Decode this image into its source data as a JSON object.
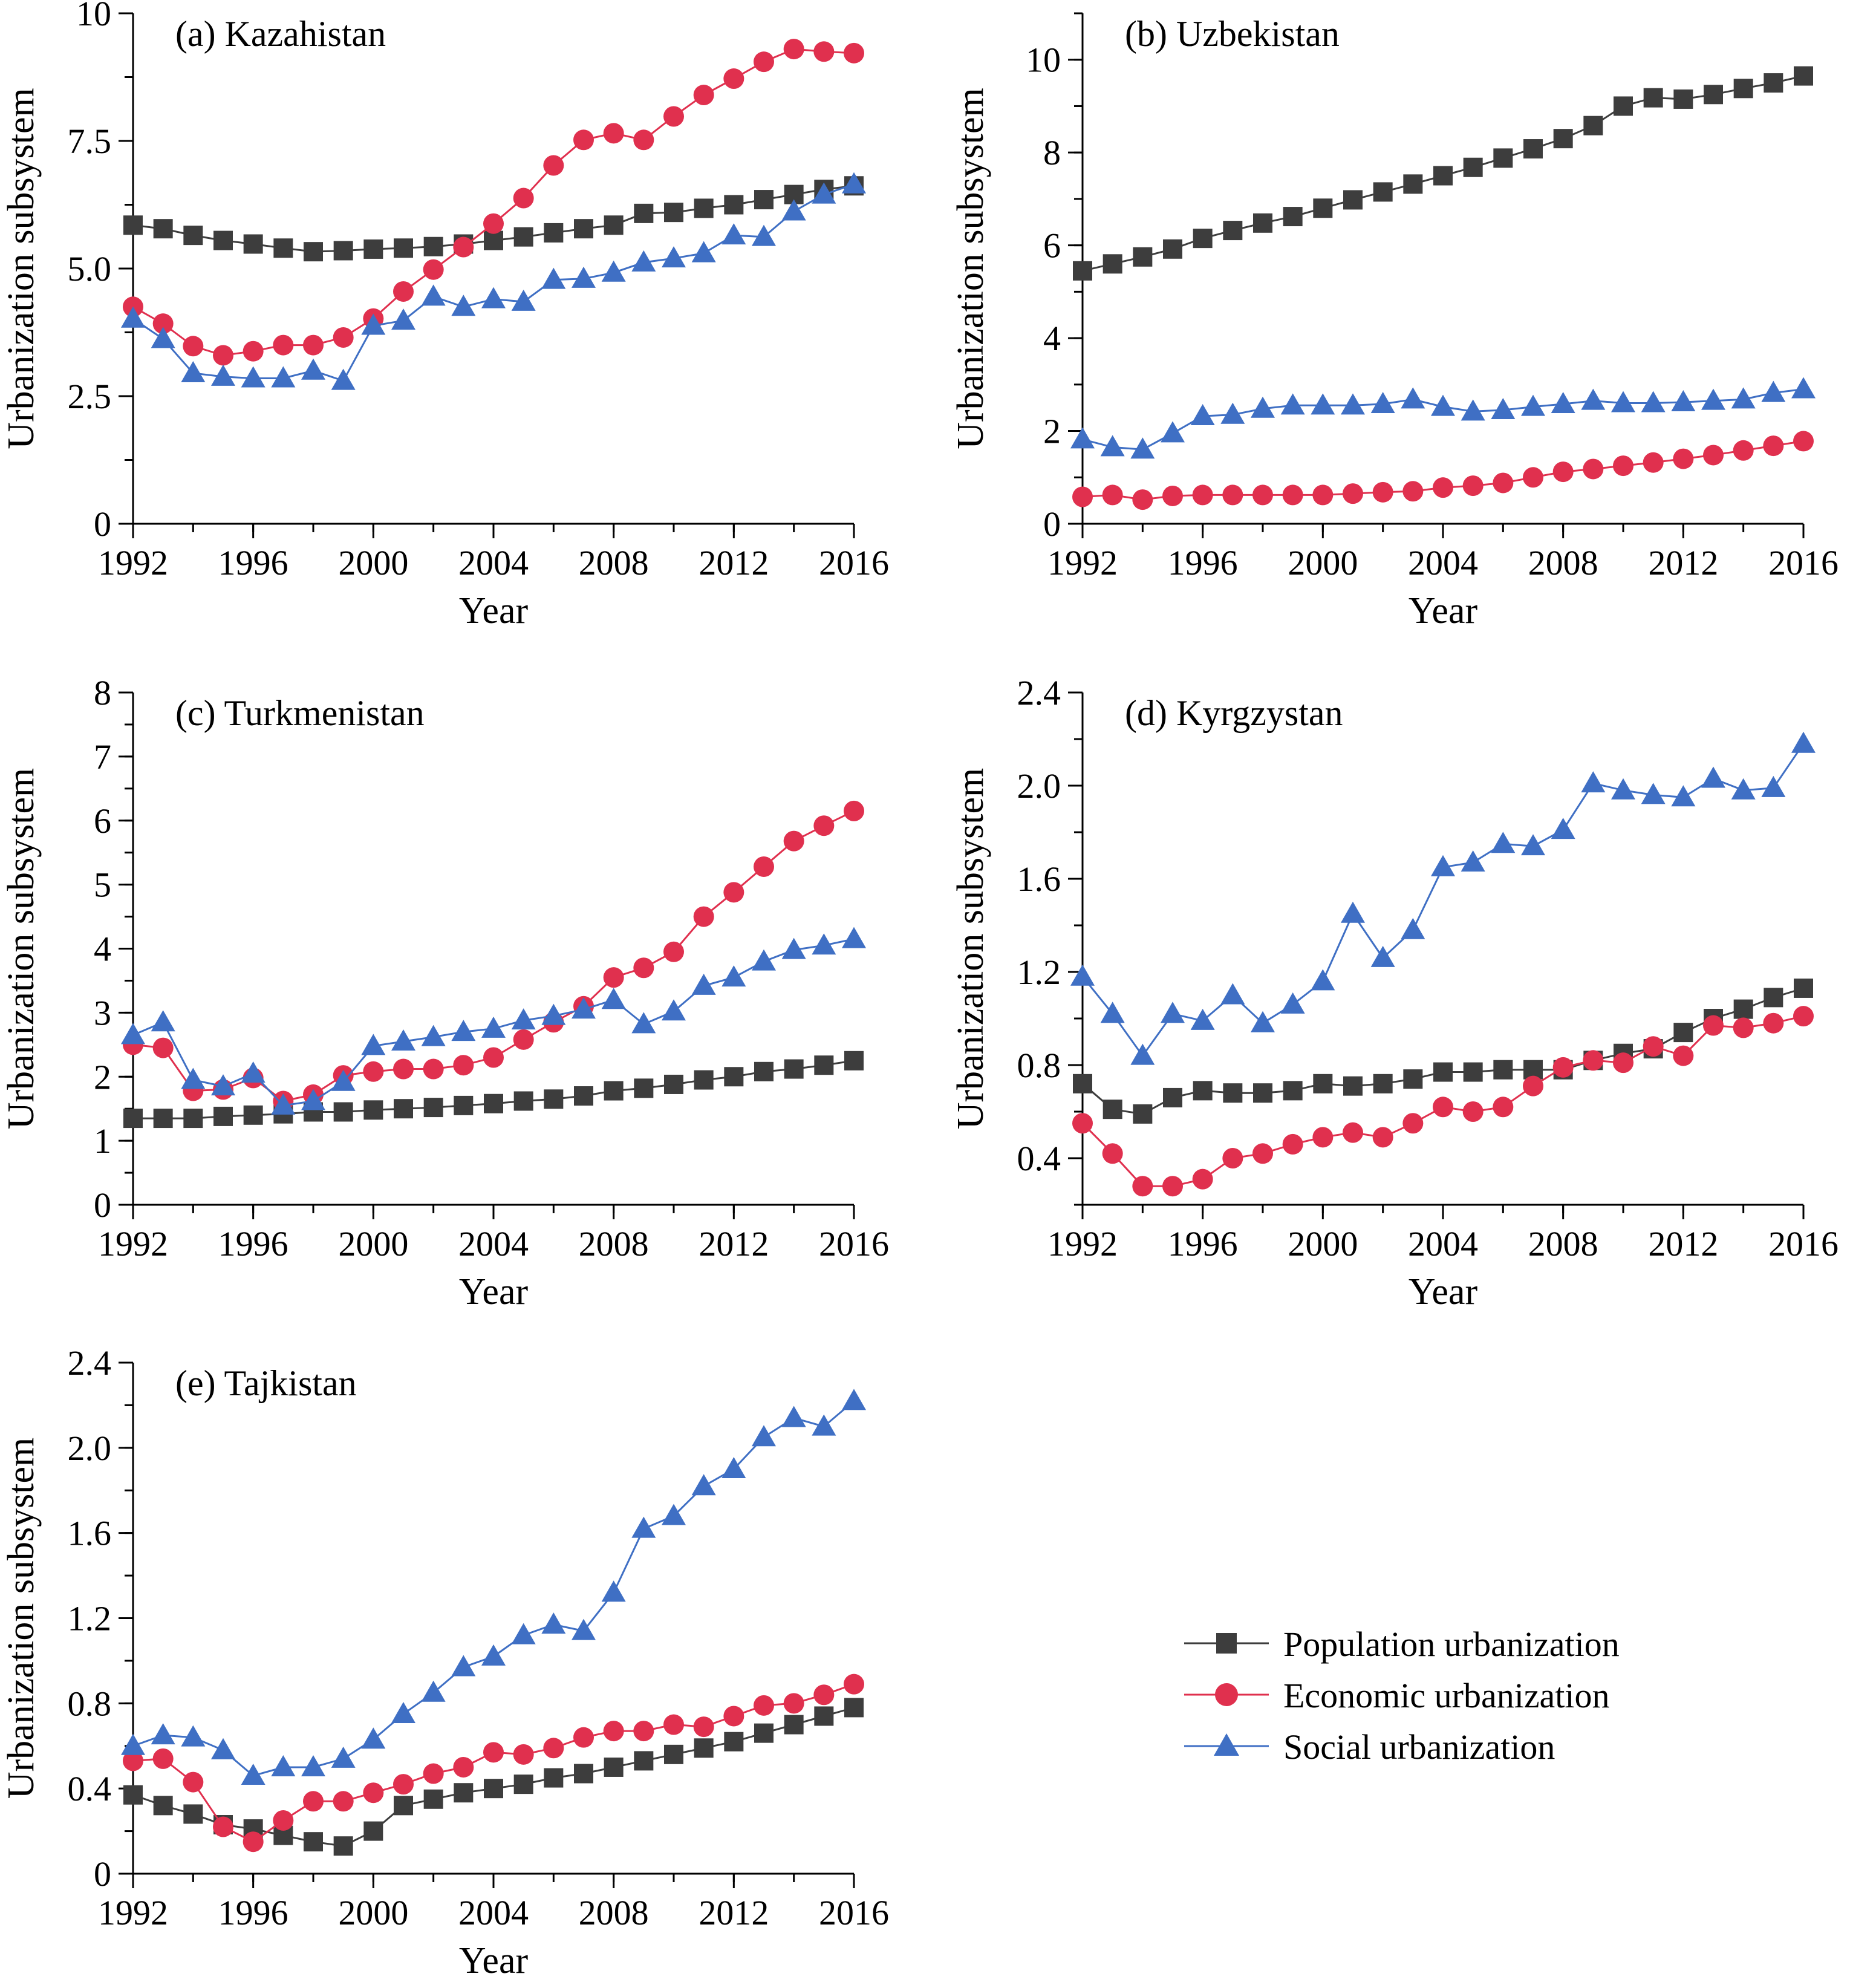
{
  "colors": {
    "population": "#3d3d3d",
    "economic": "#e0304e",
    "social": "#3f6fc4",
    "axis": "#000000"
  },
  "legend": {
    "items": [
      {
        "key": "population",
        "label": "Population urbanization",
        "marker": "square"
      },
      {
        "key": "economic",
        "label": "Economic urbanization",
        "marker": "circle"
      },
      {
        "key": "social",
        "label": "Social urbanization",
        "marker": "triangle"
      }
    ]
  },
  "chart_data": [
    {
      "type": "line",
      "title": "(a) Kazahistan",
      "xlabel": "Year",
      "ylabel": "Urbanization subsystem",
      "xlim": [
        1992,
        2016
      ],
      "ylim": [
        0,
        10
      ],
      "xticks": [
        1992,
        1996,
        2000,
        2004,
        2008,
        2012,
        2016
      ],
      "xtick_labels": [
        "1992",
        "1996",
        "2000",
        "2004",
        "2008",
        "2012",
        "2016"
      ],
      "yticks": [
        0,
        2.5,
        5.0,
        7.5,
        10
      ],
      "ytick_labels": [
        "0",
        "2.5",
        "5.0",
        "7.5",
        "10"
      ],
      "yminor": 1.25,
      "x": [
        1992,
        1993,
        1994,
        1995,
        1996,
        1997,
        1998,
        1999,
        2000,
        2001,
        2002,
        2003,
        2004,
        2005,
        2006,
        2007,
        2008,
        2009,
        2010,
        2011,
        2012,
        2013,
        2014,
        2015,
        2016
      ],
      "series": [
        {
          "name": "Population urbanization",
          "key": "population",
          "values": [
            5.85,
            5.78,
            5.65,
            5.55,
            5.48,
            5.4,
            5.33,
            5.35,
            5.38,
            5.4,
            5.43,
            5.48,
            5.55,
            5.62,
            5.7,
            5.78,
            5.85,
            6.08,
            6.1,
            6.18,
            6.25,
            6.35,
            6.45,
            6.55,
            6.62
          ]
        },
        {
          "name": "Economic urbanization",
          "key": "economic",
          "values": [
            4.25,
            3.92,
            3.48,
            3.3,
            3.38,
            3.5,
            3.5,
            3.65,
            4.02,
            4.55,
            4.98,
            5.42,
            5.88,
            6.38,
            7.02,
            7.52,
            7.65,
            7.52,
            7.98,
            8.4,
            8.72,
            9.05,
            9.3,
            9.25,
            9.22
          ]
        },
        {
          "name": "Social urbanization",
          "key": "social",
          "values": [
            4.02,
            3.62,
            2.95,
            2.88,
            2.85,
            2.85,
            3.0,
            2.8,
            3.88,
            3.98,
            4.45,
            4.25,
            4.4,
            4.35,
            4.78,
            4.8,
            4.92,
            5.12,
            5.2,
            5.3,
            5.65,
            5.62,
            6.12,
            6.45,
            6.65
          ]
        }
      ]
    },
    {
      "type": "line",
      "title": "(b) Uzbekistan",
      "xlabel": "Year",
      "ylabel": "Urbanization subsystem",
      "xlim": [
        1992,
        2016
      ],
      "ylim": [
        0,
        11
      ],
      "xticks": [
        1992,
        1996,
        2000,
        2004,
        2008,
        2012,
        2016
      ],
      "xtick_labels": [
        "1992",
        "1996",
        "2000",
        "2004",
        "2008",
        "2012",
        "2016"
      ],
      "yticks": [
        0,
        2,
        4,
        6,
        8,
        10
      ],
      "ytick_labels": [
        "0",
        "2",
        "4",
        "6",
        "8",
        "10"
      ],
      "yminor": 1,
      "x": [
        1992,
        1993,
        1994,
        1995,
        1996,
        1997,
        1998,
        1999,
        2000,
        2001,
        2002,
        2003,
        2004,
        2005,
        2006,
        2007,
        2008,
        2009,
        2010,
        2011,
        2012,
        2013,
        2014,
        2015,
        2016
      ],
      "series": [
        {
          "name": "Population urbanization",
          "key": "population",
          "values": [
            5.45,
            5.6,
            5.75,
            5.92,
            6.15,
            6.32,
            6.48,
            6.62,
            6.8,
            6.98,
            7.15,
            7.32,
            7.5,
            7.68,
            7.88,
            8.08,
            8.3,
            8.58,
            9.0,
            9.18,
            9.15,
            9.25,
            9.38,
            9.5,
            9.65
          ]
        },
        {
          "name": "Economic urbanization",
          "key": "economic",
          "values": [
            0.58,
            0.62,
            0.52,
            0.6,
            0.62,
            0.62,
            0.62,
            0.62,
            0.62,
            0.65,
            0.68,
            0.7,
            0.78,
            0.82,
            0.88,
            1.0,
            1.12,
            1.18,
            1.25,
            1.32,
            1.4,
            1.48,
            1.58,
            1.68,
            1.78
          ]
        },
        {
          "name": "Social urbanization",
          "key": "social",
          "values": [
            1.82,
            1.65,
            1.6,
            1.95,
            2.32,
            2.35,
            2.48,
            2.55,
            2.55,
            2.55,
            2.58,
            2.68,
            2.52,
            2.42,
            2.45,
            2.52,
            2.58,
            2.65,
            2.6,
            2.6,
            2.62,
            2.65,
            2.68,
            2.82,
            2.9
          ]
        }
      ]
    },
    {
      "type": "line",
      "title": "(c) Turkmenistan",
      "xlabel": "Year",
      "ylabel": "Urbanization subsystem",
      "xlim": [
        1992,
        2016
      ],
      "ylim": [
        0,
        8
      ],
      "xticks": [
        1992,
        1996,
        2000,
        2004,
        2008,
        2012,
        2016
      ],
      "xtick_labels": [
        "1992",
        "1996",
        "2000",
        "2004",
        "2008",
        "2012",
        "2016"
      ],
      "yticks": [
        0,
        1,
        2,
        3,
        4,
        5,
        6,
        7,
        8
      ],
      "ytick_labels": [
        "0",
        "1",
        "2",
        "3",
        "4",
        "5",
        "6",
        "7",
        "8"
      ],
      "yminor": 0.5,
      "x": [
        1992,
        1993,
        1994,
        1995,
        1996,
        1997,
        1998,
        1999,
        2000,
        2001,
        2002,
        2003,
        2004,
        2005,
        2006,
        2007,
        2008,
        2009,
        2010,
        2011,
        2012,
        2013,
        2014,
        2015,
        2016
      ],
      "series": [
        {
          "name": "Population urbanization",
          "key": "population",
          "values": [
            1.35,
            1.35,
            1.35,
            1.38,
            1.4,
            1.42,
            1.45,
            1.45,
            1.48,
            1.5,
            1.52,
            1.55,
            1.58,
            1.62,
            1.65,
            1.7,
            1.78,
            1.82,
            1.88,
            1.95,
            2.0,
            2.08,
            2.12,
            2.18,
            2.25
          ]
        },
        {
          "name": "Economic urbanization",
          "key": "economic",
          "values": [
            2.5,
            2.45,
            1.78,
            1.8,
            1.98,
            1.62,
            1.72,
            2.02,
            2.08,
            2.12,
            2.12,
            2.18,
            2.3,
            2.58,
            2.85,
            3.1,
            3.55,
            3.7,
            3.95,
            4.5,
            4.88,
            5.28,
            5.68,
            5.92,
            6.15
          ]
        },
        {
          "name": "Social urbanization",
          "key": "social",
          "values": [
            2.65,
            2.85,
            1.95,
            1.85,
            2.05,
            1.55,
            1.62,
            1.92,
            2.48,
            2.55,
            2.62,
            2.7,
            2.75,
            2.88,
            2.95,
            3.05,
            3.2,
            2.82,
            3.02,
            3.42,
            3.55,
            3.8,
            3.98,
            4.05,
            4.15
          ]
        }
      ]
    },
    {
      "type": "line",
      "title": "(d) Kyrgzystan",
      "xlabel": "Year",
      "ylabel": "Urbanization subsystem",
      "xlim": [
        1992,
        2016
      ],
      "ylim": [
        0.2,
        2.4
      ],
      "xticks": [
        1992,
        1996,
        2000,
        2004,
        2008,
        2012,
        2016
      ],
      "xtick_labels": [
        "1992",
        "1996",
        "2000",
        "2004",
        "2008",
        "2012",
        "2016"
      ],
      "yticks": [
        0.4,
        0.8,
        1.2,
        1.6,
        2.0,
        2.4
      ],
      "ytick_labels": [
        "0.4",
        "0.8",
        "1.2",
        "1.6",
        "2.0",
        "2.4"
      ],
      "yminor": 0.2,
      "x": [
        1992,
        1993,
        1994,
        1995,
        1996,
        1997,
        1998,
        1999,
        2000,
        2001,
        2002,
        2003,
        2004,
        2005,
        2006,
        2007,
        2008,
        2009,
        2010,
        2011,
        2012,
        2013,
        2014,
        2015,
        2016
      ],
      "series": [
        {
          "name": "Population urbanization",
          "key": "population",
          "values": [
            0.72,
            0.61,
            0.59,
            0.66,
            0.69,
            0.68,
            0.68,
            0.69,
            0.72,
            0.71,
            0.72,
            0.74,
            0.77,
            0.77,
            0.78,
            0.78,
            0.78,
            0.82,
            0.85,
            0.87,
            0.94,
            1.0,
            1.04,
            1.09,
            1.13
          ]
        },
        {
          "name": "Economic urbanization",
          "key": "economic",
          "values": [
            0.55,
            0.42,
            0.28,
            0.28,
            0.31,
            0.4,
            0.42,
            0.46,
            0.49,
            0.51,
            0.49,
            0.55,
            0.62,
            0.6,
            0.62,
            0.71,
            0.79,
            0.82,
            0.81,
            0.88,
            0.84,
            0.97,
            0.96,
            0.98,
            1.01
          ]
        },
        {
          "name": "Social urbanization",
          "key": "social",
          "values": [
            1.18,
            1.02,
            0.84,
            1.02,
            0.99,
            1.1,
            0.98,
            1.06,
            1.16,
            1.45,
            1.26,
            1.38,
            1.65,
            1.67,
            1.75,
            1.74,
            1.81,
            2.01,
            1.98,
            1.96,
            1.95,
            2.03,
            1.98,
            1.99,
            2.18
          ]
        }
      ]
    },
    {
      "type": "line",
      "title": "(e) Tajkistan",
      "xlabel": "Year",
      "ylabel": "Urbanization subsystem",
      "xlim": [
        1992,
        2016
      ],
      "ylim": [
        0,
        2.4
      ],
      "xticks": [
        1992,
        1996,
        2000,
        2004,
        2008,
        2012,
        2016
      ],
      "xtick_labels": [
        "1992",
        "1996",
        "2000",
        "2004",
        "2008",
        "2012",
        "2016"
      ],
      "yticks": [
        0,
        0.4,
        0.8,
        1.2,
        1.6,
        2.0,
        2.4
      ],
      "ytick_labels": [
        "0",
        "0.4",
        "0.8",
        "1.2",
        "1.6",
        "2.0",
        "2.4"
      ],
      "yminor": 0.2,
      "x": [
        1992,
        1993,
        1994,
        1995,
        1996,
        1997,
        1998,
        1999,
        2000,
        2001,
        2002,
        2003,
        2004,
        2005,
        2006,
        2007,
        2008,
        2009,
        2010,
        2011,
        2012,
        2013,
        2014,
        2015,
        2016
      ],
      "series": [
        {
          "name": "Population urbanization",
          "key": "population",
          "values": [
            0.37,
            0.32,
            0.28,
            0.23,
            0.21,
            0.18,
            0.15,
            0.13,
            0.2,
            0.32,
            0.35,
            0.38,
            0.4,
            0.42,
            0.45,
            0.47,
            0.5,
            0.53,
            0.56,
            0.59,
            0.62,
            0.66,
            0.7,
            0.74,
            0.78
          ]
        },
        {
          "name": "Economic urbanization",
          "key": "economic",
          "values": [
            0.53,
            0.54,
            0.43,
            0.22,
            0.15,
            0.25,
            0.34,
            0.34,
            0.38,
            0.42,
            0.47,
            0.5,
            0.57,
            0.56,
            0.59,
            0.64,
            0.67,
            0.67,
            0.7,
            0.69,
            0.74,
            0.79,
            0.8,
            0.84,
            0.89
          ]
        },
        {
          "name": "Social urbanization",
          "key": "social",
          "values": [
            0.6,
            0.65,
            0.64,
            0.58,
            0.46,
            0.5,
            0.5,
            0.54,
            0.63,
            0.75,
            0.85,
            0.97,
            1.02,
            1.12,
            1.17,
            1.14,
            1.32,
            1.62,
            1.68,
            1.82,
            1.9,
            2.05,
            2.14,
            2.1,
            2.22
          ]
        }
      ]
    }
  ]
}
